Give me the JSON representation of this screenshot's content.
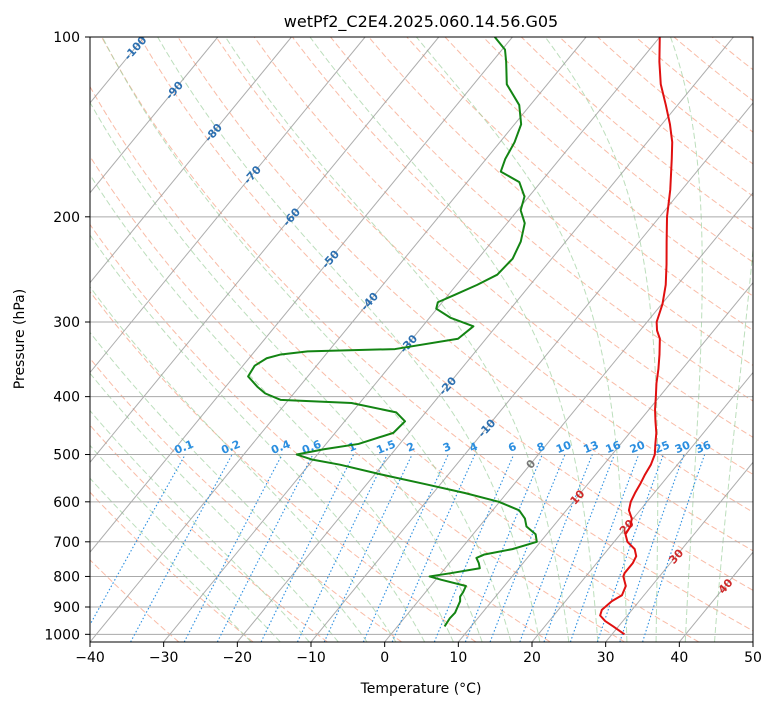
{
  "chart_data": {
    "type": "line",
    "subtype": "skew-t log-p diagram",
    "title": "wetPf2_C2E4.2025.060.14.56.G05",
    "xlabel": "Temperature (°C)",
    "ylabel": "Pressure (hPa)",
    "xlim": [
      -40,
      50
    ],
    "ylim": [
      1030,
      100
    ],
    "x_ticks": [
      -40,
      -30,
      -20,
      -10,
      0,
      10,
      20,
      30,
      40,
      50
    ],
    "x_tick_labels": [
      "−40",
      "−30",
      "−20",
      "−10",
      "0",
      "10",
      "20",
      "30",
      "40",
      "50"
    ],
    "y_ticks": [
      100,
      200,
      300,
      400,
      500,
      600,
      700,
      800,
      900,
      1000
    ],
    "y_tick_labels": [
      "100",
      "200",
      "300",
      "400",
      "500",
      "600",
      "700",
      "800",
      "900",
      "1000"
    ],
    "grid": true,
    "colors": {
      "temperature": "#e01010",
      "dewpoint": "#138413",
      "isotherm": "#999999",
      "dry_adiabat": "#f7a58a",
      "moist_adiabat": "#9fd09f",
      "mixing_ratio": "#2a8ee0",
      "isotherm_label": "#2c6fb0",
      "dry_label": "#cf2a2a",
      "zero_label": "#777777"
    },
    "series": [
      {
        "name": "Temperature",
        "color": "#e01010",
        "points": [
          [
            1000,
            31.7
          ],
          [
            970,
            29.3
          ],
          [
            950,
            27.6
          ],
          [
            930,
            26.3
          ],
          [
            910,
            25.9
          ],
          [
            880,
            26.3
          ],
          [
            860,
            27.0
          ],
          [
            830,
            26.5
          ],
          [
            800,
            25.1
          ],
          [
            790,
            24.9
          ],
          [
            760,
            24.9
          ],
          [
            740,
            24.6
          ],
          [
            720,
            23.6
          ],
          [
            700,
            21.8
          ],
          [
            680,
            20.7
          ],
          [
            660,
            20.5
          ],
          [
            640,
            19.8
          ],
          [
            620,
            18.5
          ],
          [
            600,
            17.8
          ],
          [
            580,
            17.4
          ],
          [
            560,
            17.1
          ],
          [
            540,
            16.7
          ],
          [
            520,
            16.4
          ],
          [
            500,
            15.8
          ],
          [
            480,
            14.7
          ],
          [
            460,
            13.6
          ],
          [
            440,
            12.2
          ],
          [
            420,
            10.8
          ],
          [
            400,
            9.5
          ],
          [
            380,
            8.1
          ],
          [
            360,
            6.8
          ],
          [
            340,
            5.3
          ],
          [
            320,
            3.6
          ],
          [
            310,
            2.3
          ],
          [
            300,
            1.3
          ],
          [
            280,
            0.1
          ],
          [
            260,
            -1.6
          ],
          [
            240,
            -3.8
          ],
          [
            220,
            -6.3
          ],
          [
            200,
            -9.0
          ],
          [
            180,
            -11.6
          ],
          [
            160,
            -14.8
          ],
          [
            150,
            -16.6
          ],
          [
            140,
            -18.9
          ],
          [
            130,
            -21.6
          ],
          [
            120,
            -24.6
          ],
          [
            110,
            -27.3
          ],
          [
            100,
            -30.0
          ]
        ]
      },
      {
        "name": "Dewpoint",
        "color": "#138413",
        "points": [
          [
            970,
            6.4
          ],
          [
            940,
            6.2
          ],
          [
            920,
            6.3
          ],
          [
            900,
            6.0
          ],
          [
            880,
            5.7
          ],
          [
            865,
            5.2
          ],
          [
            850,
            5.1
          ],
          [
            830,
            4.8
          ],
          [
            810,
            0.7
          ],
          [
            800,
            -1.2
          ],
          [
            790,
            1.3
          ],
          [
            775,
            4.7
          ],
          [
            760,
            4.0
          ],
          [
            745,
            3.1
          ],
          [
            735,
            3.8
          ],
          [
            720,
            7.0
          ],
          [
            700,
            9.5
          ],
          [
            680,
            8.5
          ],
          [
            660,
            6.4
          ],
          [
            640,
            5.3
          ],
          [
            620,
            3.6
          ],
          [
            600,
            -0.1
          ],
          [
            580,
            -5.7
          ],
          [
            560,
            -12.2
          ],
          [
            540,
            -19.1
          ],
          [
            520,
            -25.8
          ],
          [
            510,
            -30.1
          ],
          [
            500,
            -32.8
          ],
          [
            490,
            -29.7
          ],
          [
            480,
            -25.6
          ],
          [
            460,
            -22.1
          ],
          [
            440,
            -21.8
          ],
          [
            425,
            -24.0
          ],
          [
            410,
            -31.1
          ],
          [
            405,
            -41.1
          ],
          [
            395,
            -43.9
          ],
          [
            385,
            -45.7
          ],
          [
            370,
            -48.1
          ],
          [
            355,
            -48.4
          ],
          [
            345,
            -47.6
          ],
          [
            340,
            -46.1
          ],
          [
            336,
            -42.8
          ],
          [
            333,
            -31.2
          ],
          [
            320,
            -23.8
          ],
          [
            305,
            -23.1
          ],
          [
            295,
            -27.2
          ],
          [
            285,
            -30.1
          ],
          [
            278,
            -30.6
          ],
          [
            270,
            -29.1
          ],
          [
            260,
            -27.2
          ],
          [
            250,
            -25.6
          ],
          [
            235,
            -25.3
          ],
          [
            220,
            -26.1
          ],
          [
            205,
            -27.6
          ],
          [
            195,
            -29.6
          ],
          [
            185,
            -30.6
          ],
          [
            175,
            -32.9
          ],
          [
            168,
            -36.6
          ],
          [
            160,
            -37.4
          ],
          [
            150,
            -38.0
          ],
          [
            140,
            -39.1
          ],
          [
            130,
            -41.5
          ],
          [
            120,
            -45.5
          ],
          [
            110,
            -48.1
          ],
          [
            105,
            -49.6
          ],
          [
            100,
            -52.4
          ]
        ]
      }
    ],
    "isotherm_labels": [
      "-100",
      "-90",
      "-80",
      "-70",
      "-60",
      "-50",
      "-40",
      "-30",
      "-20",
      "-10",
      "0",
      "10",
      "20",
      "30",
      "40"
    ],
    "isotherm_label_values": [
      -100,
      -90,
      -80,
      -70,
      -60,
      -50,
      -40,
      -30,
      -20,
      -10,
      0,
      10,
      20,
      30,
      40
    ],
    "mixing_ratio_labels": [
      "0.1",
      "0.2",
      "0.4",
      "0.6",
      "1",
      "1.5",
      "2",
      "3",
      "4",
      "6",
      "8",
      "10",
      "13",
      "16",
      "20",
      "25",
      "30",
      "36"
    ],
    "mixing_ratio_values": [
      0.1,
      0.2,
      0.4,
      0.6,
      1,
      1.5,
      2,
      3,
      4,
      6,
      8,
      10,
      13,
      16,
      20,
      25,
      30,
      36
    ],
    "mixing_ratio_label_pressure": 500
  }
}
